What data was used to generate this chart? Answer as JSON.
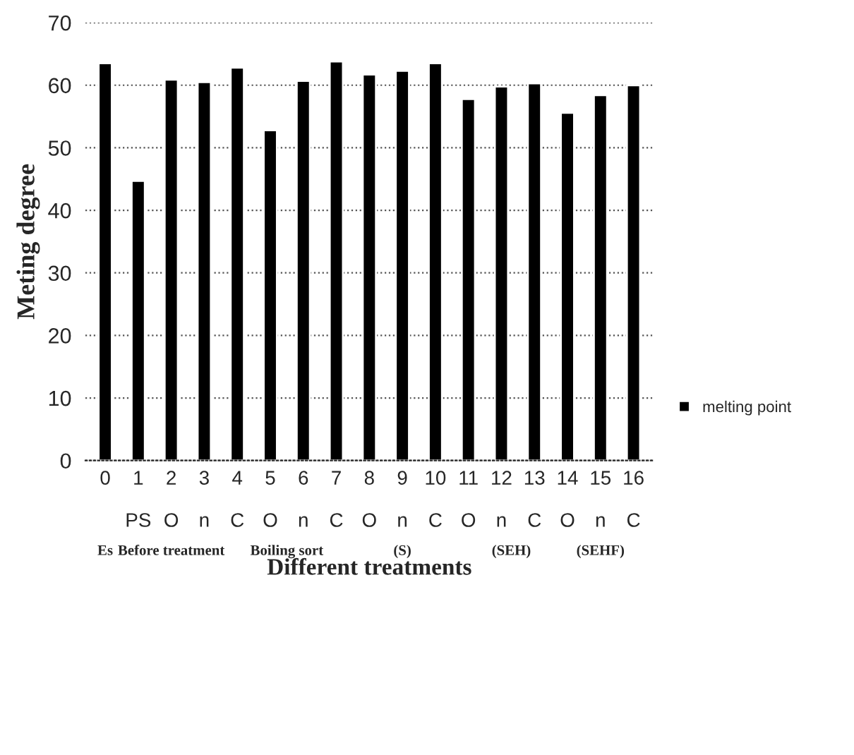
{
  "chart_data": {
    "type": "bar",
    "xlabel": "Different treatments",
    "ylabel": "Meting degree",
    "categories": [
      "0\n\n ",
      "1\n\nPS",
      "2\n\nO",
      "3\n\nn",
      "4\n\nC",
      "5\n\nO",
      "6\n\nn",
      "7\n\nC",
      "8\n\nO",
      "9\n\nn",
      "10\n\nC",
      "11\n\nO",
      "12\n\nn",
      "13\n\nC",
      "14\n\nO",
      "15\n\nn",
      "16\n\nC"
    ],
    "series": [
      {
        "name": "melting point",
        "color": "#000000",
        "values": [
          63.5,
          44.7,
          60.9,
          60.5,
          62.8,
          52.8,
          60.7,
          63.8,
          61.7,
          62.3,
          63.5,
          57.8,
          59.8,
          60.3,
          55.6,
          58.4,
          60.0
        ]
      }
    ],
    "annotations": [
      "Es",
      "Before treatment",
      "Boiling sort",
      "(S)",
      "(SEH)",
      "(SEHF)"
    ],
    "ylim": [
      0,
      70
    ],
    "yticks": [
      0,
      10,
      20,
      30,
      40,
      50,
      60,
      70
    ],
    "grid": "y",
    "legend": "right"
  }
}
